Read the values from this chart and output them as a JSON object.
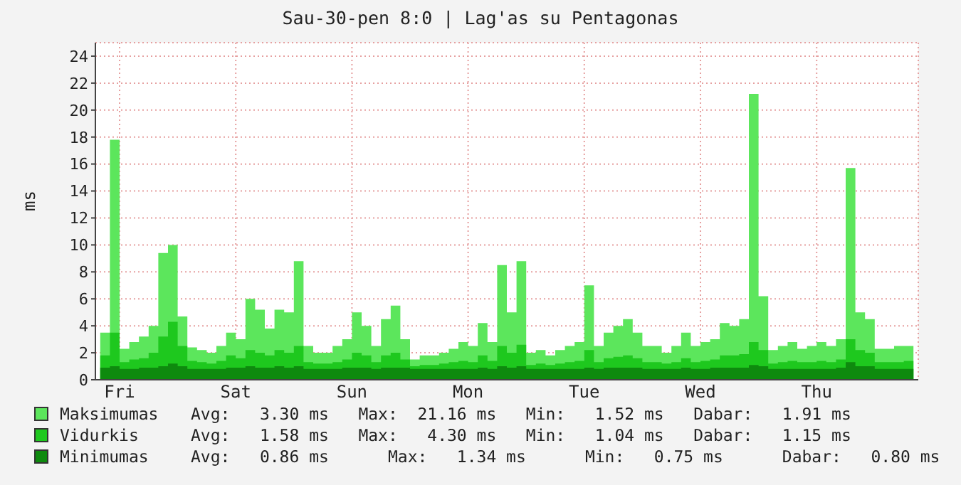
{
  "chart_data": {
    "type": "area",
    "title": "Sau-30-pen 8:0 | Lag'as su Pentagonas",
    "ylabel": "ms",
    "categories": [
      null,
      null,
      "Fri",
      null,
      null,
      null,
      null,
      null,
      null,
      null,
      null,
      null,
      null,
      null,
      "Sat",
      null,
      null,
      null,
      null,
      null,
      null,
      null,
      null,
      null,
      null,
      null,
      "Sun",
      null,
      null,
      null,
      null,
      null,
      null,
      null,
      null,
      null,
      null,
      null,
      "Mon",
      null,
      null,
      null,
      null,
      null,
      null,
      null,
      null,
      null,
      null,
      null,
      "Tue",
      null,
      null,
      null,
      null,
      null,
      null,
      null,
      null,
      null,
      null,
      null,
      "Wed",
      null,
      null,
      null,
      null,
      null,
      null,
      null,
      null,
      null,
      null,
      null,
      "Thu",
      null,
      null,
      null,
      null,
      null,
      null,
      null,
      null,
      null,
      null
    ],
    "series": [
      {
        "name": "Maksimumas",
        "color": "#5ce65c",
        "values": [
          3.5,
          17.8,
          2.3,
          2.8,
          3.2,
          4.0,
          9.4,
          10.0,
          4.7,
          2.4,
          2.2,
          2.0,
          2.5,
          3.5,
          3.0,
          6.0,
          5.2,
          3.8,
          5.2,
          5.0,
          8.8,
          2.5,
          2.0,
          2.0,
          2.5,
          3.0,
          5.0,
          4.0,
          2.5,
          4.5,
          5.5,
          3.0,
          1.5,
          1.8,
          1.8,
          2.0,
          2.3,
          2.8,
          2.5,
          4.2,
          2.8,
          8.5,
          5.0,
          8.8,
          2.0,
          2.2,
          1.8,
          2.2,
          2.5,
          2.8,
          7.0,
          2.5,
          3.5,
          4.0,
          4.5,
          3.5,
          2.5,
          2.5,
          2.0,
          2.5,
          3.5,
          2.5,
          2.8,
          3.0,
          4.2,
          4.0,
          4.5,
          21.2,
          6.2,
          2.2,
          2.5,
          2.8,
          2.3,
          2.5,
          2.8,
          2.5,
          3.0,
          15.7,
          5.0,
          4.5,
          2.3,
          2.3,
          2.5,
          2.5,
          2.0
        ]
      },
      {
        "name": "Vidurkis",
        "color": "#1ec81e",
        "values": [
          1.8,
          3.5,
          1.3,
          1.5,
          1.6,
          2.0,
          3.2,
          4.3,
          2.5,
          1.4,
          1.3,
          1.2,
          1.4,
          1.8,
          1.6,
          2.2,
          2.0,
          1.8,
          2.2,
          2.0,
          2.5,
          1.3,
          1.2,
          1.2,
          1.3,
          1.5,
          2.0,
          1.8,
          1.3,
          1.8,
          2.0,
          1.5,
          1.0,
          1.1,
          1.1,
          1.2,
          1.3,
          1.4,
          1.3,
          1.8,
          1.4,
          2.5,
          2.0,
          2.6,
          1.1,
          1.2,
          1.1,
          1.2,
          1.3,
          1.4,
          2.2,
          1.3,
          1.6,
          1.7,
          1.8,
          1.6,
          1.3,
          1.3,
          1.2,
          1.3,
          1.6,
          1.3,
          1.4,
          1.5,
          1.8,
          1.8,
          1.9,
          2.8,
          2.2,
          1.2,
          1.3,
          1.4,
          1.3,
          1.3,
          1.4,
          1.3,
          1.5,
          3.0,
          2.2,
          2.0,
          1.3,
          1.3,
          1.3,
          1.4,
          1.2
        ]
      },
      {
        "name": "Minimumas",
        "color": "#0e8a0e",
        "values": [
          0.9,
          1.0,
          0.8,
          0.8,
          0.9,
          0.9,
          1.0,
          1.2,
          1.0,
          0.8,
          0.8,
          0.8,
          0.8,
          0.9,
          0.9,
          1.0,
          0.9,
          0.9,
          1.0,
          0.9,
          1.0,
          0.8,
          0.8,
          0.8,
          0.8,
          0.9,
          0.9,
          0.9,
          0.8,
          0.9,
          0.9,
          0.9,
          0.8,
          0.8,
          0.8,
          0.8,
          0.8,
          0.8,
          0.8,
          0.9,
          0.8,
          1.0,
          0.9,
          1.0,
          0.8,
          0.8,
          0.8,
          0.8,
          0.8,
          0.8,
          0.9,
          0.8,
          0.9,
          0.9,
          0.9,
          0.9,
          0.8,
          0.8,
          0.8,
          0.8,
          0.9,
          0.8,
          0.8,
          0.9,
          0.9,
          0.9,
          0.9,
          1.1,
          1.0,
          0.8,
          0.8,
          0.8,
          0.8,
          0.8,
          0.8,
          0.8,
          0.9,
          1.3,
          1.0,
          1.0,
          0.8,
          0.8,
          0.8,
          0.8,
          0.8
        ]
      }
    ],
    "ylim": [
      0,
      25
    ],
    "yticks": [
      0,
      2,
      4,
      6,
      8,
      10,
      12,
      14,
      16,
      18,
      20,
      22,
      24
    ],
    "grid": true,
    "legend": "bottom",
    "annotations": [
      "Avg:   3.30 ms   Max:  21.16 ms   Min:   1.52 ms   Dabar:   1.91 ms",
      "Avg:   1.58 ms   Max:   4.30 ms   Min:   1.04 ms   Dabar:   1.15 ms",
      "Avg:   0.86 ms      Max:   1.34 ms      Min:   0.75 ms      Dabar:   0.80 ms"
    ]
  }
}
